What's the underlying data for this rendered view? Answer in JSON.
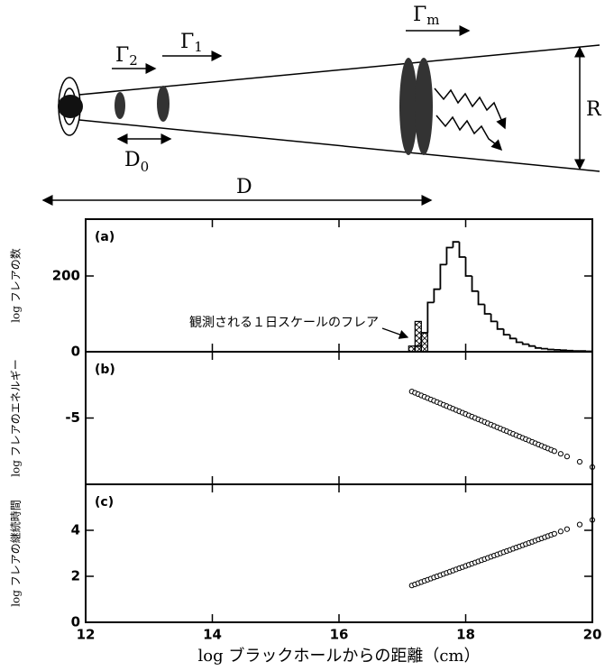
{
  "diagram": {
    "gamma_2": {
      "symbol": "Γ",
      "sub": "2"
    },
    "gamma_1": {
      "symbol": "Γ",
      "sub": "1"
    },
    "gamma_m": {
      "symbol": "Γ",
      "sub": "m"
    },
    "d_0": {
      "symbol": "D",
      "sub": "0"
    },
    "d": "D",
    "r": "R"
  },
  "chart_data": [
    {
      "type": "histogram",
      "label": "(a)",
      "ylabel": "log フレアの数",
      "xlim": [
        12,
        20
      ],
      "xticks": [
        12,
        14,
        16,
        18,
        20
      ],
      "ylim": [
        0,
        350
      ],
      "yticks": [
        0,
        200
      ],
      "annotation": "観測される１日スケールのフレア",
      "histograms": [
        {
          "bins": [
            17.2,
            17.3,
            17.4,
            17.5,
            17.6,
            17.7,
            17.8,
            17.9,
            18,
            18.1,
            18.2,
            18.3,
            18.4,
            18.5,
            18.6,
            18.7,
            18.8,
            18.9,
            19,
            19.1,
            19.2,
            19.3,
            19.4,
            19.5,
            19.6,
            19.7,
            19.8,
            19.9,
            20
          ],
          "counts": [
            15,
            50,
            130,
            165,
            230,
            275,
            290,
            250,
            200,
            160,
            125,
            100,
            80,
            60,
            45,
            35,
            25,
            20,
            15,
            10,
            8,
            6,
            5,
            4,
            3,
            2,
            2,
            1
          ],
          "color": "#000000",
          "fill": "none"
        },
        {
          "bins": [
            17.1,
            17.2,
            17.3,
            17.4
          ],
          "counts": [
            15,
            80,
            50
          ],
          "color": "#000000",
          "fill": "hatch"
        }
      ]
    },
    {
      "type": "scatter",
      "label": "(b)",
      "ylabel": "log フレアのエネルギー",
      "xlim": [
        12,
        20
      ],
      "xticks": [
        12,
        14,
        16,
        18,
        20
      ],
      "ylim": [
        -10,
        0
      ],
      "yticks": [
        -5
      ],
      "color": "#000000",
      "x": [
        17.15,
        17.2,
        17.25,
        17.3,
        17.35,
        17.4,
        17.45,
        17.5,
        17.55,
        17.6,
        17.65,
        17.7,
        17.75,
        17.8,
        17.85,
        17.9,
        17.95,
        18,
        18.05,
        18.1,
        18.15,
        18.2,
        18.25,
        18.3,
        18.35,
        18.4,
        18.45,
        18.5,
        18.55,
        18.6,
        18.65,
        18.7,
        18.75,
        18.8,
        18.85,
        18.9,
        18.95,
        19,
        19.05,
        19.1,
        19.15,
        19.2,
        19.25,
        19.3,
        19.35,
        19.4,
        19.5,
        19.6,
        19.8,
        20
      ],
      "y": [
        -3,
        -3.1,
        -3.2,
        -3.3,
        -3.4,
        -3.5,
        -3.6,
        -3.7,
        -3.8,
        -3.9,
        -4,
        -4.1,
        -4.2,
        -4.3,
        -4.4,
        -4.5,
        -4.6,
        -4.7,
        -4.8,
        -4.9,
        -5,
        -5.1,
        -5.2,
        -5.3,
        -5.4,
        -5.5,
        -5.6,
        -5.7,
        -5.8,
        -5.9,
        -6,
        -6.1,
        -6.2,
        -6.3,
        -6.4,
        -6.5,
        -6.6,
        -6.7,
        -6.8,
        -6.9,
        -7,
        -7.1,
        -7.2,
        -7.3,
        -7.4,
        -7.5,
        -7.7,
        -7.9,
        -8.3,
        -8.7
      ]
    },
    {
      "type": "scatter",
      "label": "(c)",
      "ylabel": "log フレアの継続時間",
      "xlabel": "log ブラックホールからの距離（cm）",
      "xtick_labels": true,
      "xlim": [
        12,
        20
      ],
      "xticks": [
        12,
        14,
        16,
        18,
        20
      ],
      "ylim": [
        0,
        6
      ],
      "yticks": [
        0,
        2,
        4
      ],
      "color": "#000000",
      "x": [
        17.15,
        17.2,
        17.25,
        17.3,
        17.35,
        17.4,
        17.45,
        17.5,
        17.55,
        17.6,
        17.65,
        17.7,
        17.75,
        17.8,
        17.85,
        17.9,
        17.95,
        18,
        18.05,
        18.1,
        18.15,
        18.2,
        18.25,
        18.3,
        18.35,
        18.4,
        18.45,
        18.5,
        18.55,
        18.6,
        18.65,
        18.7,
        18.75,
        18.8,
        18.85,
        18.9,
        18.95,
        19,
        19.05,
        19.1,
        19.15,
        19.2,
        19.25,
        19.3,
        19.35,
        19.4,
        19.5,
        19.6,
        19.8,
        20
      ],
      "y": [
        1.6,
        1.65,
        1.7,
        1.75,
        1.8,
        1.85,
        1.9,
        1.95,
        2,
        2.05,
        2.1,
        2.15,
        2.2,
        2.25,
        2.3,
        2.35,
        2.4,
        2.45,
        2.5,
        2.55,
        2.6,
        2.65,
        2.7,
        2.75,
        2.8,
        2.85,
        2.9,
        2.95,
        3,
        3.05,
        3.1,
        3.15,
        3.2,
        3.25,
        3.3,
        3.35,
        3.4,
        3.45,
        3.5,
        3.55,
        3.6,
        3.65,
        3.7,
        3.75,
        3.8,
        3.85,
        3.95,
        4.05,
        4.25,
        4.45
      ]
    }
  ]
}
